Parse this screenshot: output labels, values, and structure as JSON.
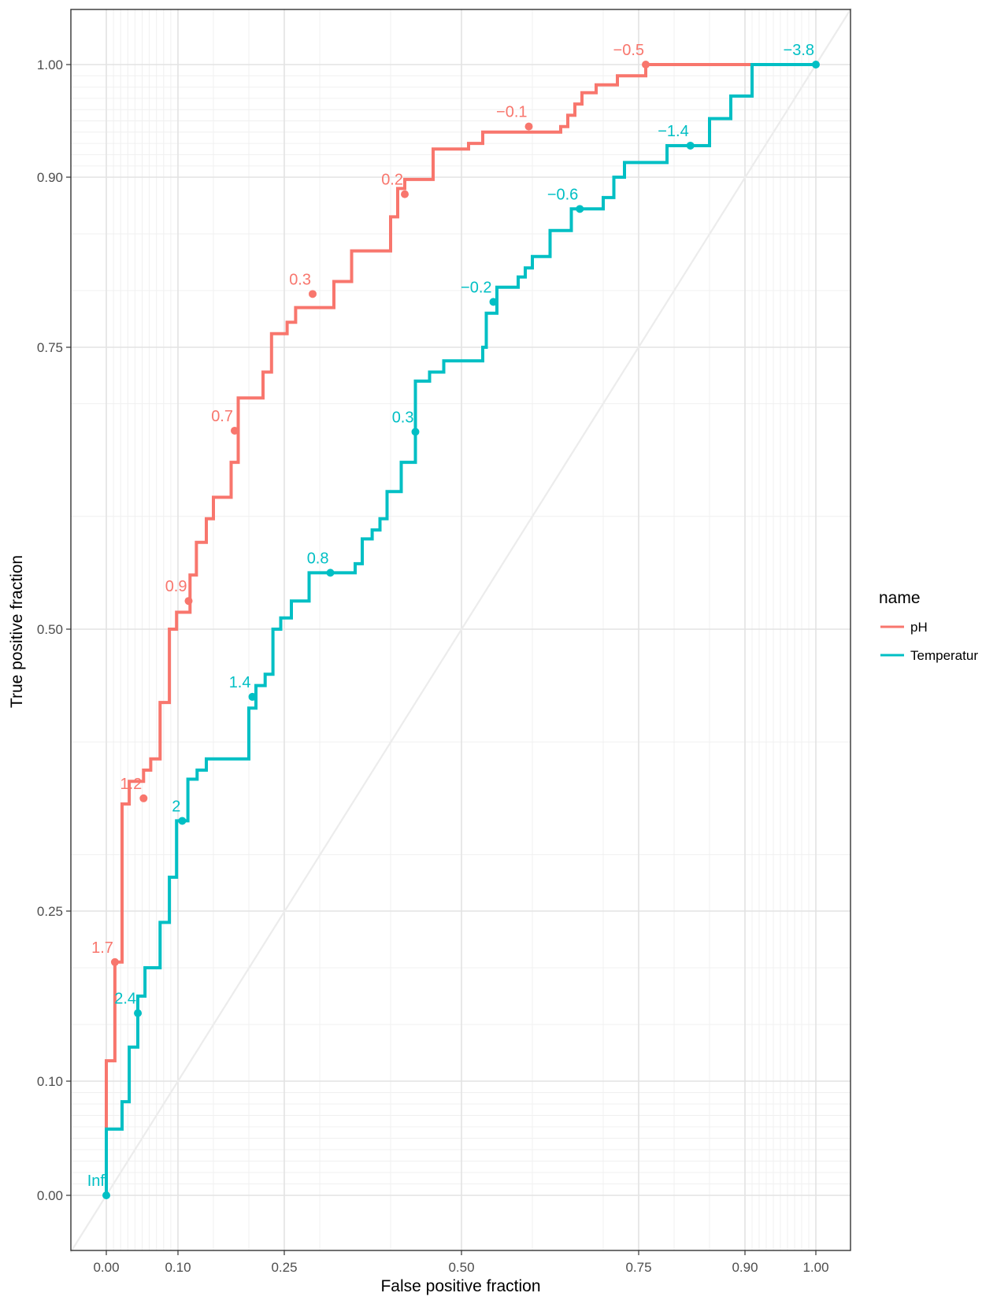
{
  "chart_data": {
    "type": "line",
    "xlabel": "False positive fraction",
    "ylabel": "True positive fraction",
    "xlim": [
      -0.05,
      1.05
    ],
    "ylim": [
      -0.05,
      1.05
    ],
    "scale": "probit-like (axis breaks 0, 0.1, 0.25, 0.5, 0.75, 0.9, 1)",
    "x_ticks": [
      {
        "value": 0.0,
        "label": "0.00"
      },
      {
        "value": 0.1,
        "label": "0.10"
      },
      {
        "value": 0.25,
        "label": "0.25"
      },
      {
        "value": 0.5,
        "label": "0.50"
      },
      {
        "value": 0.75,
        "label": "0.75"
      },
      {
        "value": 0.9,
        "label": "0.90"
      },
      {
        "value": 1.0,
        "label": "1.00"
      }
    ],
    "y_ticks": [
      {
        "value": 0.0,
        "label": "0.00"
      },
      {
        "value": 0.1,
        "label": "0.10"
      },
      {
        "value": 0.25,
        "label": "0.25"
      },
      {
        "value": 0.5,
        "label": "0.50"
      },
      {
        "value": 0.75,
        "label": "0.75"
      },
      {
        "value": 0.9,
        "label": "0.90"
      },
      {
        "value": 1.0,
        "label": "1.00"
      }
    ],
    "grid": true,
    "legend": {
      "title": "name",
      "placement": "right"
    },
    "series": [
      {
        "name": "pH",
        "color": "#F8766D",
        "points": [
          [
            0,
            0
          ],
          [
            0,
            0.118
          ],
          [
            0.012,
            0.118
          ],
          [
            0.012,
            0.205
          ],
          [
            0.022,
            0.205
          ],
          [
            0.022,
            0.345
          ],
          [
            0.032,
            0.345
          ],
          [
            0.032,
            0.365
          ],
          [
            0.052,
            0.365
          ],
          [
            0.052,
            0.375
          ],
          [
            0.062,
            0.375
          ],
          [
            0.062,
            0.385
          ],
          [
            0.075,
            0.385
          ],
          [
            0.075,
            0.435
          ],
          [
            0.088,
            0.435
          ],
          [
            0.088,
            0.5
          ],
          [
            0.098,
            0.5
          ],
          [
            0.098,
            0.515
          ],
          [
            0.117,
            0.515
          ],
          [
            0.117,
            0.548
          ],
          [
            0.126,
            0.548
          ],
          [
            0.126,
            0.577
          ],
          [
            0.14,
            0.577
          ],
          [
            0.14,
            0.598
          ],
          [
            0.15,
            0.598
          ],
          [
            0.15,
            0.617
          ],
          [
            0.175,
            0.617
          ],
          [
            0.175,
            0.648
          ],
          [
            0.185,
            0.648
          ],
          [
            0.185,
            0.705
          ],
          [
            0.22,
            0.705
          ],
          [
            0.22,
            0.728
          ],
          [
            0.232,
            0.728
          ],
          [
            0.232,
            0.762
          ],
          [
            0.254,
            0.762
          ],
          [
            0.254,
            0.772
          ],
          [
            0.266,
            0.772
          ],
          [
            0.266,
            0.785
          ],
          [
            0.32,
            0.785
          ],
          [
            0.32,
            0.808
          ],
          [
            0.345,
            0.808
          ],
          [
            0.345,
            0.835
          ],
          [
            0.4,
            0.835
          ],
          [
            0.4,
            0.865
          ],
          [
            0.41,
            0.865
          ],
          [
            0.41,
            0.89
          ],
          [
            0.42,
            0.89
          ],
          [
            0.42,
            0.898
          ],
          [
            0.46,
            0.898
          ],
          [
            0.46,
            0.925
          ],
          [
            0.51,
            0.925
          ],
          [
            0.51,
            0.93
          ],
          [
            0.53,
            0.93
          ],
          [
            0.53,
            0.94
          ],
          [
            0.64,
            0.94
          ],
          [
            0.64,
            0.945
          ],
          [
            0.65,
            0.945
          ],
          [
            0.65,
            0.955
          ],
          [
            0.66,
            0.955
          ],
          [
            0.66,
            0.965
          ],
          [
            0.67,
            0.965
          ],
          [
            0.67,
            0.975
          ],
          [
            0.69,
            0.975
          ],
          [
            0.69,
            0.982
          ],
          [
            0.72,
            0.982
          ],
          [
            0.72,
            0.99
          ],
          [
            0.76,
            0.99
          ],
          [
            0.76,
            1.0
          ],
          [
            1.0,
            1.0
          ]
        ],
        "cutoffs": [
          {
            "x": 0.012,
            "y": 0.205,
            "label": "1.7"
          },
          {
            "x": 0.052,
            "y": 0.35,
            "label": "1.2"
          },
          {
            "x": 0.115,
            "y": 0.525,
            "label": "0.9"
          },
          {
            "x": 0.18,
            "y": 0.676,
            "label": "0.7"
          },
          {
            "x": 0.29,
            "y": 0.797,
            "label": "0.3"
          },
          {
            "x": 0.42,
            "y": 0.885,
            "label": "0.2"
          },
          {
            "x": 0.595,
            "y": 0.945,
            "label": "−0.1"
          },
          {
            "x": 0.76,
            "y": 1.0,
            "label": "−0.5"
          }
        ]
      },
      {
        "name": "Temperatur",
        "color": "#00BFC4",
        "points": [
          [
            0,
            0
          ],
          [
            0,
            0.058
          ],
          [
            0.022,
            0.058
          ],
          [
            0.022,
            0.082
          ],
          [
            0.032,
            0.082
          ],
          [
            0.032,
            0.13
          ],
          [
            0.044,
            0.13
          ],
          [
            0.044,
            0.175
          ],
          [
            0.054,
            0.175
          ],
          [
            0.054,
            0.2
          ],
          [
            0.075,
            0.2
          ],
          [
            0.075,
            0.24
          ],
          [
            0.088,
            0.24
          ],
          [
            0.088,
            0.28
          ],
          [
            0.098,
            0.28
          ],
          [
            0.098,
            0.33
          ],
          [
            0.114,
            0.33
          ],
          [
            0.114,
            0.367
          ],
          [
            0.127,
            0.367
          ],
          [
            0.127,
            0.375
          ],
          [
            0.14,
            0.375
          ],
          [
            0.14,
            0.385
          ],
          [
            0.2,
            0.385
          ],
          [
            0.2,
            0.43
          ],
          [
            0.21,
            0.43
          ],
          [
            0.21,
            0.45
          ],
          [
            0.223,
            0.45
          ],
          [
            0.223,
            0.46
          ],
          [
            0.234,
            0.46
          ],
          [
            0.234,
            0.5
          ],
          [
            0.245,
            0.5
          ],
          [
            0.245,
            0.51
          ],
          [
            0.26,
            0.51
          ],
          [
            0.26,
            0.525
          ],
          [
            0.285,
            0.525
          ],
          [
            0.285,
            0.55
          ],
          [
            0.35,
            0.55
          ],
          [
            0.35,
            0.558
          ],
          [
            0.36,
            0.558
          ],
          [
            0.36,
            0.58
          ],
          [
            0.374,
            0.58
          ],
          [
            0.374,
            0.588
          ],
          [
            0.385,
            0.588
          ],
          [
            0.385,
            0.598
          ],
          [
            0.395,
            0.598
          ],
          [
            0.395,
            0.622
          ],
          [
            0.415,
            0.622
          ],
          [
            0.415,
            0.648
          ],
          [
            0.435,
            0.648
          ],
          [
            0.435,
            0.72
          ],
          [
            0.455,
            0.72
          ],
          [
            0.455,
            0.728
          ],
          [
            0.475,
            0.728
          ],
          [
            0.475,
            0.738
          ],
          [
            0.53,
            0.738
          ],
          [
            0.53,
            0.75
          ],
          [
            0.535,
            0.75
          ],
          [
            0.535,
            0.78
          ],
          [
            0.55,
            0.78
          ],
          [
            0.55,
            0.803
          ],
          [
            0.58,
            0.803
          ],
          [
            0.58,
            0.812
          ],
          [
            0.59,
            0.812
          ],
          [
            0.59,
            0.82
          ],
          [
            0.6,
            0.82
          ],
          [
            0.6,
            0.83
          ],
          [
            0.625,
            0.83
          ],
          [
            0.625,
            0.853
          ],
          [
            0.655,
            0.853
          ],
          [
            0.655,
            0.872
          ],
          [
            0.7,
            0.872
          ],
          [
            0.7,
            0.882
          ],
          [
            0.715,
            0.882
          ],
          [
            0.715,
            0.9
          ],
          [
            0.73,
            0.9
          ],
          [
            0.73,
            0.913
          ],
          [
            0.79,
            0.913
          ],
          [
            0.79,
            0.928
          ],
          [
            0.85,
            0.928
          ],
          [
            0.85,
            0.952
          ],
          [
            0.88,
            0.952
          ],
          [
            0.88,
            0.972
          ],
          [
            0.91,
            0.972
          ],
          [
            0.91,
            1.0
          ],
          [
            1.0,
            1.0
          ]
        ],
        "cutoffs": [
          {
            "x": 0.0,
            "y": 0.0,
            "label": "Inf"
          },
          {
            "x": 0.044,
            "y": 0.16,
            "label": "2.4"
          },
          {
            "x": 0.106,
            "y": 0.33,
            "label": "2"
          },
          {
            "x": 0.205,
            "y": 0.44,
            "label": "1.4"
          },
          {
            "x": 0.315,
            "y": 0.55,
            "label": "0.8"
          },
          {
            "x": 0.435,
            "y": 0.675,
            "label": "0.3"
          },
          {
            "x": 0.545,
            "y": 0.79,
            "label": "−0.2"
          },
          {
            "x": 0.667,
            "y": 0.872,
            "label": "−0.6"
          },
          {
            "x": 0.823,
            "y": 0.928,
            "label": "−1.4"
          },
          {
            "x": 1.0,
            "y": 1.0,
            "label": "−3.8"
          }
        ]
      }
    ]
  }
}
